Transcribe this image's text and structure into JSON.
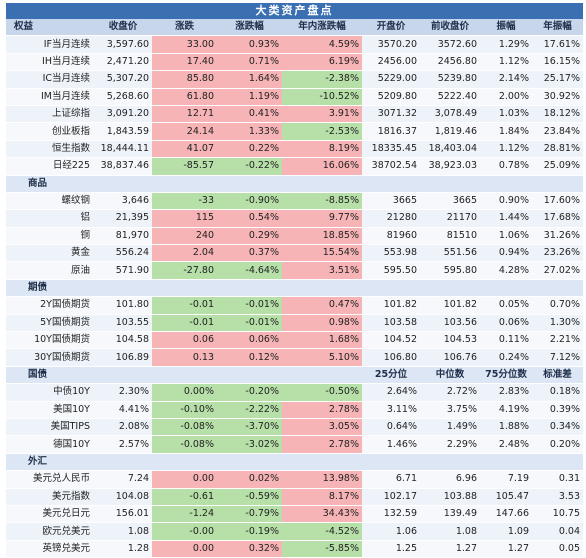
{
  "title": "大类资产盘点",
  "header": [
    "权益",
    "收盘价",
    "涨跌",
    "涨跌幅",
    "年内涨跌幅",
    "开盘价",
    "前收盘价",
    "振幅",
    "年振幅"
  ],
  "equity": [
    {
      "name": "IF当月连续",
      "close": "3,597.60",
      "chg": "33.00",
      "pct": "0.93%",
      "ytd": "4.59%",
      "open": "3570.20",
      "prev": "3572.60",
      "amp": "1.29%",
      "yamp": "17.61%",
      "c1": "up",
      "c2": "up"
    },
    {
      "name": "IH当月连续",
      "close": "2,471.20",
      "chg": "17.40",
      "pct": "0.71%",
      "ytd": "6.19%",
      "open": "2456.00",
      "prev": "2456.80",
      "amp": "1.12%",
      "yamp": "16.15%",
      "c1": "up",
      "c2": "up"
    },
    {
      "name": "IC当月连续",
      "close": "5,307.20",
      "chg": "85.80",
      "pct": "1.64%",
      "ytd": "-2.38%",
      "open": "5229.00",
      "prev": "5239.80",
      "amp": "2.14%",
      "yamp": "25.17%",
      "c1": "up",
      "c2": "dn"
    },
    {
      "name": "IM当月连续",
      "close": "5,268.60",
      "chg": "61.80",
      "pct": "1.19%",
      "ytd": "-10.52%",
      "open": "5209.80",
      "prev": "5222.40",
      "amp": "2.00%",
      "yamp": "30.92%",
      "c1": "up",
      "c2": "dn"
    },
    {
      "name": "上证综指",
      "close": "3,091.20",
      "chg": "12.71",
      "pct": "0.41%",
      "ytd": "3.91%",
      "open": "3071.32",
      "prev": "3,078.49",
      "amp": "1.03%",
      "yamp": "18.12%",
      "c1": "up",
      "c2": "up"
    },
    {
      "name": "创业板指",
      "close": "1,843.59",
      "chg": "24.14",
      "pct": "1.33%",
      "ytd": "-2.53%",
      "open": "1816.37",
      "prev": "1,819.46",
      "amp": "1.84%",
      "yamp": "23.84%",
      "c1": "up",
      "c2": "dn"
    },
    {
      "name": "恒生指数",
      "close": "18,444.11",
      "chg": "41.07",
      "pct": "0.22%",
      "ytd": "8.19%",
      "open": "18335.45",
      "prev": "18,403.04",
      "amp": "1.12%",
      "yamp": "28.81%",
      "c1": "up",
      "c2": "up"
    },
    {
      "name": "日经225",
      "close": "38,837.46",
      "chg": "-85.57",
      "pct": "-0.22%",
      "ytd": "16.06%",
      "open": "38702.54",
      "prev": "38,923.03",
      "amp": "0.78%",
      "yamp": "25.09%",
      "c1": "dn",
      "c2": "up"
    }
  ],
  "commodity_header": "商品",
  "commodity": [
    {
      "name": "螺纹钢",
      "close": "3,646",
      "chg": "-33",
      "pct": "-0.90%",
      "ytd": "-8.85%",
      "open": "3665",
      "prev": "3665",
      "amp": "0.90%",
      "yamp": "17.60%",
      "c1": "dn",
      "c2": "dn"
    },
    {
      "name": "铝",
      "close": "21,395",
      "chg": "115",
      "pct": "0.54%",
      "ytd": "9.77%",
      "open": "21280",
      "prev": "21170",
      "amp": "1.44%",
      "yamp": "17.68%",
      "c1": "up",
      "c2": "up"
    },
    {
      "name": "铜",
      "close": "81,970",
      "chg": "240",
      "pct": "0.29%",
      "ytd": "18.85%",
      "open": "81960",
      "prev": "81510",
      "amp": "1.06%",
      "yamp": "31.26%",
      "c1": "up",
      "c2": "up"
    },
    {
      "name": "黄金",
      "close": "556.24",
      "chg": "2.04",
      "pct": "0.37%",
      "ytd": "15.54%",
      "open": "553.98",
      "prev": "551.56",
      "amp": "0.94%",
      "yamp": "23.26%",
      "c1": "up",
      "c2": "up"
    },
    {
      "name": "原油",
      "close": "571.90",
      "chg": "-27.80",
      "pct": "-4.64%",
      "ytd": "3.51%",
      "open": "595.50",
      "prev": "595.80",
      "amp": "4.28%",
      "yamp": "27.02%",
      "c1": "dn",
      "c2": "up"
    }
  ],
  "futures_header": "期债",
  "futures": [
    {
      "name": "2Y国债期货",
      "close": "101.80",
      "chg": "-0.01",
      "pct": "-0.01%",
      "ytd": "0.47%",
      "open": "101.82",
      "prev": "101.82",
      "amp": "0.05%",
      "yamp": "0.70%",
      "c1": "dn",
      "c2": "up"
    },
    {
      "name": "5Y国债期货",
      "close": "103.55",
      "chg": "-0.01",
      "pct": "-0.01%",
      "ytd": "0.98%",
      "open": "103.58",
      "prev": "103.56",
      "amp": "0.06%",
      "yamp": "1.30%",
      "c1": "dn",
      "c2": "up"
    },
    {
      "name": "10Y国债期货",
      "close": "104.58",
      "chg": "0.06",
      "pct": "0.06%",
      "ytd": "1.68%",
      "open": "104.52",
      "prev": "104.53",
      "amp": "0.11%",
      "yamp": "2.21%",
      "c1": "up",
      "c2": "up"
    },
    {
      "name": "30Y国债期货",
      "close": "106.89",
      "chg": "0.13",
      "pct": "0.12%",
      "ytd": "5.10%",
      "open": "106.80",
      "prev": "106.76",
      "amp": "0.24%",
      "yamp": "7.12%",
      "c1": "up",
      "c2": "up"
    }
  ],
  "bond_header": [
    "国债",
    "25分位",
    "中位数",
    "75分位数",
    "标准差"
  ],
  "bond": [
    {
      "name": "中债10Y",
      "close": "2.30%",
      "chg": "0.00%",
      "pct": "-0.20%",
      "ytd": "-0.50%",
      "open": "2.64%",
      "prev": "2.72%",
      "amp": "2.83%",
      "yamp": "0.18%",
      "c1": "dn",
      "c2": "dn"
    },
    {
      "name": "美国10Y",
      "close": "4.41%",
      "chg": "-0.10%",
      "pct": "-2.22%",
      "ytd": "2.78%",
      "open": "3.11%",
      "prev": "3.75%",
      "amp": "4.19%",
      "yamp": "0.39%",
      "c1": "dn",
      "c2": "up"
    },
    {
      "name": "美国TIPS",
      "close": "2.08%",
      "chg": "-0.08%",
      "pct": "-3.70%",
      "ytd": "3.05%",
      "open": "0.64%",
      "prev": "1.49%",
      "amp": "1.88%",
      "yamp": "0.34%",
      "c1": "dn",
      "c2": "up"
    },
    {
      "name": "德国10Y",
      "close": "2.57%",
      "chg": "-0.08%",
      "pct": "-3.02%",
      "ytd": "2.78%",
      "open": "1.46%",
      "prev": "2.29%",
      "amp": "2.48%",
      "yamp": "0.20%",
      "c1": "dn",
      "c2": "up"
    }
  ],
  "fx_header": "外汇",
  "fx": [
    {
      "name": "美元兑人民币",
      "close": "7.24",
      "chg": "0.00",
      "pct": "0.02%",
      "ytd": "13.98%",
      "open": "6.71",
      "prev": "6.96",
      "amp": "7.19",
      "yamp": "0.31",
      "c1": "up",
      "c2": "up"
    },
    {
      "name": "美元指数",
      "close": "104.08",
      "chg": "-0.61",
      "pct": "-0.59%",
      "ytd": "8.17%",
      "open": "102.17",
      "prev": "103.88",
      "amp": "105.47",
      "yamp": "3.53",
      "c1": "dn",
      "c2": "up"
    },
    {
      "name": "美元兑日元",
      "close": "156.01",
      "chg": "-1.24",
      "pct": "-0.79%",
      "ytd": "34.43%",
      "open": "132.59",
      "prev": "139.49",
      "amp": "147.66",
      "yamp": "10.75",
      "c1": "dn",
      "c2": "up"
    },
    {
      "name": "欧元兑美元",
      "close": "1.08",
      "chg": "-0.00",
      "pct": "-0.19%",
      "ytd": "-4.52%",
      "open": "1.06",
      "prev": "1.08",
      "amp": "1.09",
      "yamp": "0.04",
      "c1": "dn",
      "c2": "dn"
    },
    {
      "name": "英镑兑美元",
      "close": "1.28",
      "chg": "0.00",
      "pct": "0.32%",
      "ytd": "-5.85%",
      "open": "1.25",
      "prev": "1.27",
      "amp": "1.27",
      "yamp": "0.05",
      "c1": "up",
      "c2": "dn"
    }
  ],
  "colors": {
    "title_bg": "#3a6fb2",
    "up": "#f7b4b6",
    "down": "#b7e0a9",
    "header_bg": "#c8d6ec"
  }
}
